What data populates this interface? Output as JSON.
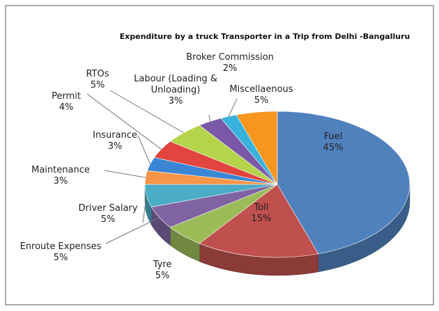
{
  "chart_data": {
    "type": "pie",
    "title": "Expenditure by a truck Transporter in a Trip  from Delhi -Bangalluru",
    "categories": [
      "Fuel",
      "Toll",
      "Tyre",
      "Enroute Expenses",
      "Driver Salary",
      "Maintenance",
      "Insurance",
      "Permit",
      "RTOs",
      "Labour (Loading & Unloading)",
      "Broker Commission",
      "Miscellaenous"
    ],
    "values": [
      45,
      15,
      5,
      5,
      5,
      3,
      3,
      4,
      5,
      3,
      2,
      5
    ],
    "value_labels": [
      "45%",
      "15%",
      "5%",
      "5%",
      "5%",
      "3%",
      "3%",
      "4%",
      "5%",
      "3%",
      "2%",
      "5%"
    ],
    "colors": [
      "#4f81bd",
      "#c0504d",
      "#9bbb59",
      "#8064a2",
      "#4bacc6",
      "#f79646",
      "#3a86d4",
      "#e2443f",
      "#b5d44c",
      "#7a58a8",
      "#38b2dc",
      "#f7961e"
    ]
  }
}
